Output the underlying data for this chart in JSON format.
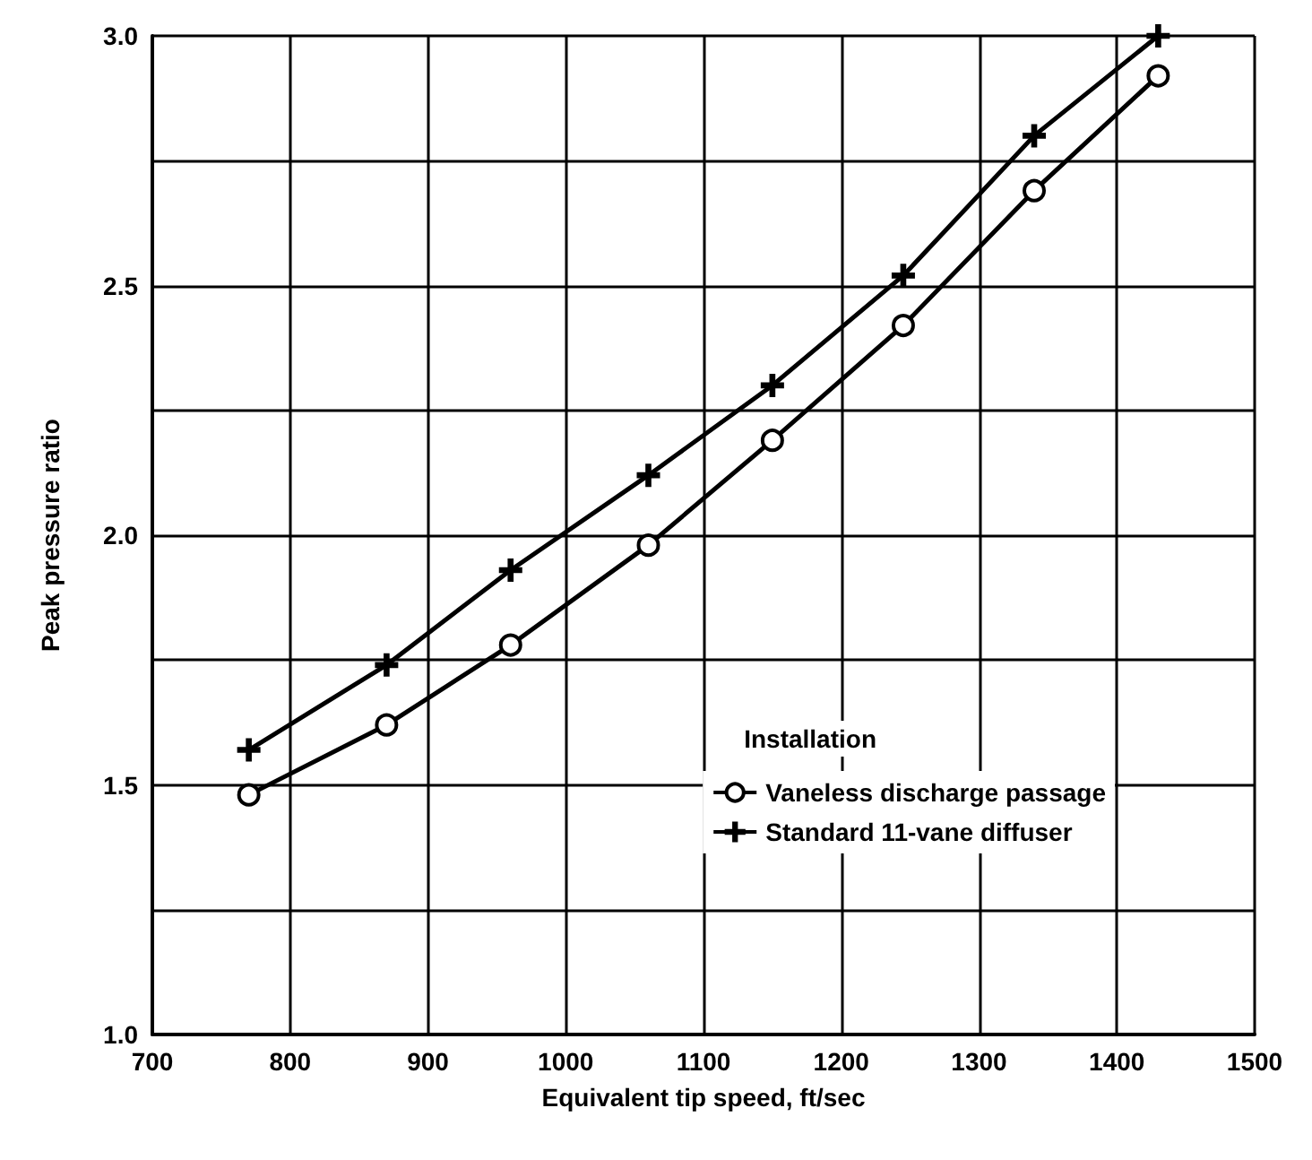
{
  "chart_data": {
    "type": "line",
    "xlabel": "Equivalent tip speed, ft/sec",
    "ylabel": "Peak pressure ratio",
    "legend_title": "Installation",
    "legend": "right",
    "grid": true,
    "xlim": [
      700,
      1500
    ],
    "xticks": [
      700,
      800,
      900,
      1000,
      1100,
      1200,
      1300,
      1400,
      1500
    ],
    "ylim": [
      1.0,
      3.0
    ],
    "yticks": [
      {
        "value": 1.0,
        "label": "1.0"
      },
      {
        "value": 1.25,
        "label": null
      },
      {
        "value": 1.5,
        "label": "1.5"
      },
      {
        "value": 1.75,
        "label": null
      },
      {
        "value": 2.0,
        "label": "2.0"
      },
      {
        "value": 2.25,
        "label": null
      },
      {
        "value": 2.5,
        "label": "2.5"
      },
      {
        "value": 2.75,
        "label": null
      },
      {
        "value": 3.0,
        "label": "3.0"
      }
    ],
    "x": [
      770,
      870,
      960,
      1060,
      1150,
      1245,
      1340,
      1430
    ],
    "series": [
      {
        "name": "Vaneless discharge passage",
        "color": "#000000",
        "marker": "circle",
        "values": [
          1.48,
          1.62,
          1.78,
          1.98,
          2.19,
          2.42,
          2.69,
          2.92
        ]
      },
      {
        "name": "Standard 11-vane diffuser",
        "color": "#000000",
        "marker": "cross",
        "values": [
          1.57,
          1.74,
          1.93,
          2.12,
          2.3,
          2.52,
          2.8,
          3.0
        ]
      }
    ]
  }
}
